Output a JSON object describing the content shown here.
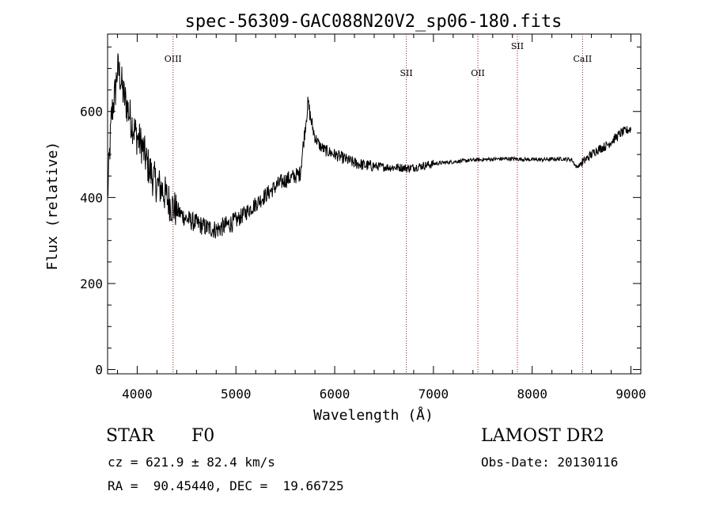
{
  "chart_data": {
    "type": "line",
    "title": "spec-56309-GAC088N20V2_sp06-180.fits",
    "xlabel": "Wavelength (Å)",
    "ylabel": "Flux (relative)",
    "xlim": [
      3700,
      9100
    ],
    "ylim": [
      -10,
      780
    ],
    "xticks": [
      4000,
      5000,
      6000,
      7000,
      8000,
      9000
    ],
    "yticks": [
      0,
      200,
      400,
      600
    ],
    "grid": false,
    "series": [
      {
        "x": [
          3700,
          3720,
          3740,
          3760,
          3780,
          3800,
          3830,
          3860,
          3900,
          3950,
          4000,
          4050,
          4100,
          4150,
          4200,
          4250,
          4300,
          4350,
          4400,
          4450,
          4500,
          4550,
          4600,
          4650,
          4700,
          4750,
          4800,
          4850,
          4900,
          4950,
          5000,
          5050,
          5100,
          5150,
          5200,
          5250,
          5300,
          5350,
          5400,
          5450,
          5500,
          5550,
          5600,
          5650,
          5700,
          5730,
          5760,
          5800,
          5850,
          5900,
          5950,
          6000,
          6050,
          6100,
          6150,
          6200,
          6250,
          6300,
          6350,
          6400,
          6450,
          6500,
          6550,
          6600,
          6650,
          6700,
          6750,
          6800,
          6850,
          6900,
          6950,
          7000,
          7100,
          7200,
          7300,
          7400,
          7500,
          7600,
          7700,
          7800,
          7900,
          8000,
          8100,
          8200,
          8300,
          8400,
          8450,
          8500,
          8550,
          8600,
          8650,
          8700,
          8750,
          8800,
          8850,
          8900,
          8950,
          9000
        ],
        "y": [
          400,
          500,
          590,
          620,
          650,
          700,
          680,
          640,
          610,
          570,
          540,
          520,
          480,
          450,
          430,
          420,
          400,
          380,
          370,
          360,
          350,
          345,
          340,
          335,
          330,
          328,
          325,
          330,
          335,
          340,
          345,
          355,
          365,
          375,
          385,
          395,
          405,
          415,
          425,
          435,
          440,
          445,
          450,
          455,
          560,
          620,
          580,
          540,
          520,
          510,
          505,
          500,
          495,
          490,
          485,
          480,
          478,
          475,
          474,
          473,
          472,
          471,
          470,
          470,
          470,
          469,
          468,
          470,
          472,
          474,
          476,
          478,
          481,
          483,
          485,
          487,
          488,
          489,
          490,
          490,
          489,
          488,
          488,
          489,
          490,
          488,
          470,
          480,
          490,
          500,
          510,
          515,
          520,
          530,
          540,
          550,
          555,
          560
        ]
      }
    ],
    "annotations": [
      {
        "label": "OIII",
        "x": 4363
      },
      {
        "label": "SII",
        "x": 6725
      },
      {
        "label": "OII",
        "x": 7450
      },
      {
        "label": "SII",
        "x": 7850
      },
      {
        "label": "CaII",
        "x": 8510
      }
    ]
  },
  "info": {
    "object_type": "STAR",
    "subclass": "F0",
    "survey": "LAMOST DR2",
    "cz_text": "cz = 621.9 ± 82.4 km/s",
    "obs_date_text": "Obs-Date: 20130116",
    "coords_text": "RA =  90.45440, DEC =  19.66725"
  }
}
